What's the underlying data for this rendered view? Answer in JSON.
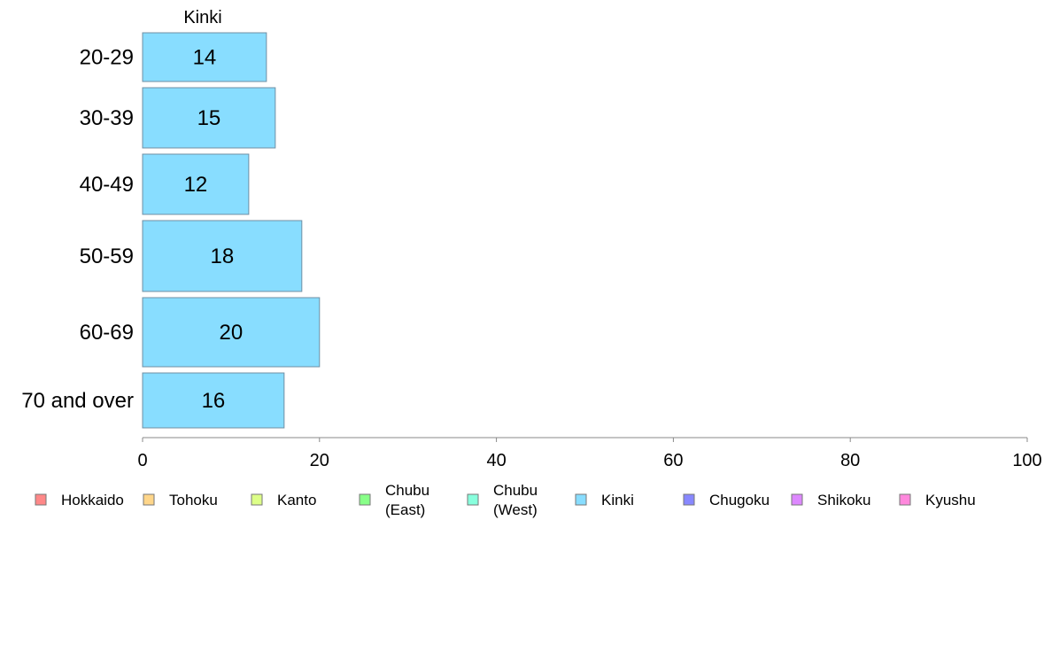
{
  "chart_data": {
    "type": "bar",
    "orientation": "horizontal",
    "series_title": "Kinki",
    "categories": [
      "20-29",
      "30-39",
      "40-49",
      "50-59",
      "60-69",
      "70 and over"
    ],
    "values": [
      14,
      15,
      12,
      18,
      20,
      16
    ],
    "value_labels": [
      "14",
      "15",
      "12",
      "18",
      "20",
      "16"
    ],
    "xlim": [
      0,
      100
    ],
    "xticks": [
      "0",
      "20",
      "40",
      "60",
      "80",
      "100"
    ],
    "grid": false,
    "bar_color": "#88DDFF",
    "bar_stroke": "#6f8fa3",
    "axis_color": "#888888",
    "legend_position": "bottom",
    "legend": [
      {
        "lines": [
          "Hokkaido"
        ],
        "color": "#FF8888"
      },
      {
        "lines": [
          "Tohoku"
        ],
        "color": "#FFD68A"
      },
      {
        "lines": [
          "Kanto"
        ],
        "color": "#DDFF88"
      },
      {
        "lines": [
          "Chubu",
          "(East)"
        ],
        "color": "#88FF88"
      },
      {
        "lines": [
          "Chubu",
          "(West)"
        ],
        "color": "#88FFDD"
      },
      {
        "lines": [
          "Kinki"
        ],
        "color": "#88DDFF"
      },
      {
        "lines": [
          "Chugoku"
        ],
        "color": "#8888FF"
      },
      {
        "lines": [
          "Shikoku"
        ],
        "color": "#DD88FF"
      },
      {
        "lines": [
          "Kyushu"
        ],
        "color": "#FF88DD"
      }
    ]
  }
}
